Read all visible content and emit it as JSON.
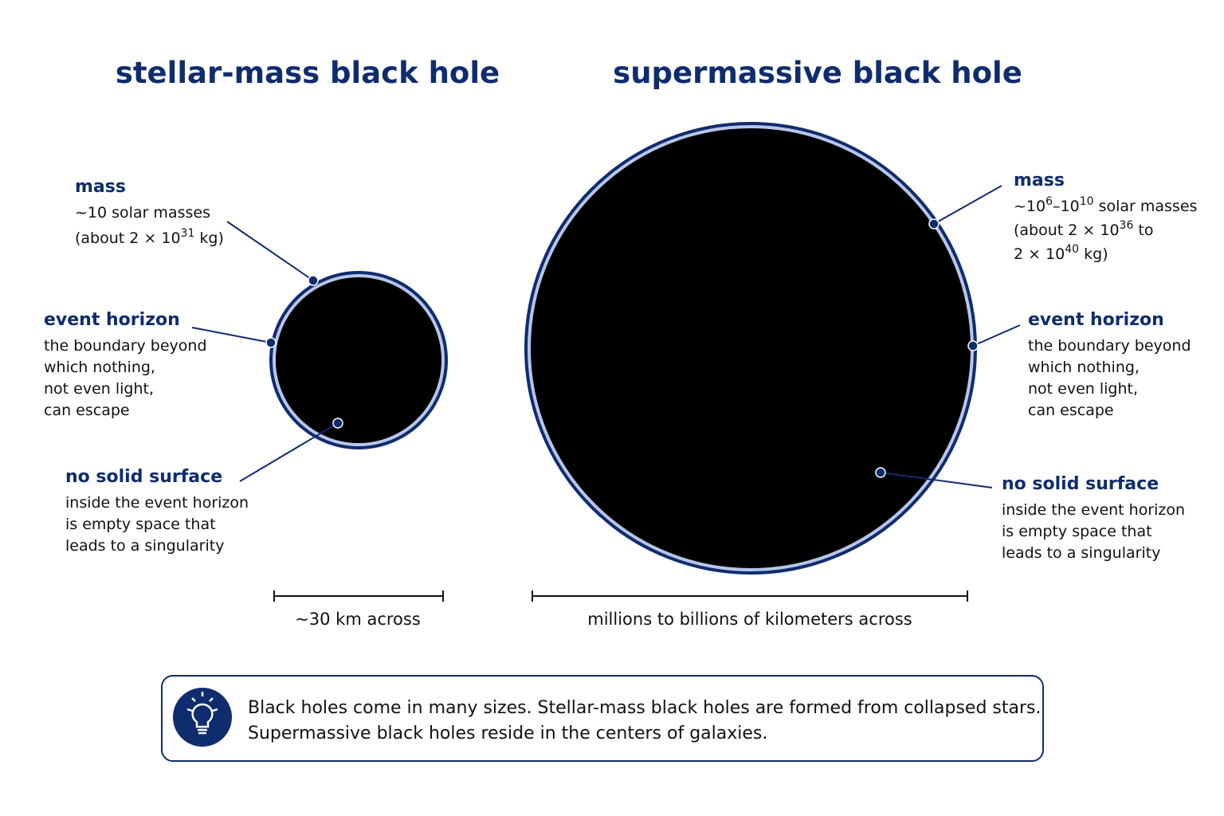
{
  "panels": [
    {
      "title": "stellar-mass black hole",
      "annotations": [
        {
          "heading": "mass",
          "lines": [
            [
              "~10 solar masses"
            ],
            [
              "(about 2 × 10",
              {
                "sup": "31"
              },
              " kg)"
            ]
          ]
        },
        {
          "heading": "event horizon",
          "lines": [
            [
              "the boundary beyond"
            ],
            [
              "which nothing,"
            ],
            [
              "not even light,"
            ],
            [
              "can escape"
            ]
          ]
        },
        {
          "heading": "no solid surface",
          "lines": [
            [
              "inside the event horizon"
            ],
            [
              "is empty space that"
            ],
            [
              "leads to a singularity"
            ]
          ]
        }
      ],
      "scale": "~30 km across"
    },
    {
      "title": "supermassive black hole",
      "annotations": [
        {
          "heading": "mass",
          "lines": [
            [
              "~10",
              {
                "sup": "6"
              },
              "–10",
              {
                "sup": "10"
              },
              " solar masses"
            ],
            [
              "(about 2 × 10",
              {
                "sup": "36"
              },
              " to"
            ],
            [
              "2 × 10",
              {
                "sup": "40"
              },
              " kg)"
            ]
          ]
        },
        {
          "heading": "event horizon",
          "lines": [
            [
              "the boundary beyond"
            ],
            [
              "which nothing,"
            ],
            [
              "not even light,"
            ],
            [
              "can escape"
            ]
          ]
        },
        {
          "heading": "no solid surface",
          "lines": [
            [
              "inside the event horizon"
            ],
            [
              "is empty space that"
            ],
            [
              "leads to a singularity"
            ]
          ]
        }
      ],
      "scale": "millions to billions of kilometers across"
    }
  ],
  "note": {
    "lines": [
      "Black holes come in many sizes. Stellar-mass black holes are formed from collapsed stars.",
      "Supermassive black holes reside in the centers of galaxies."
    ]
  }
}
